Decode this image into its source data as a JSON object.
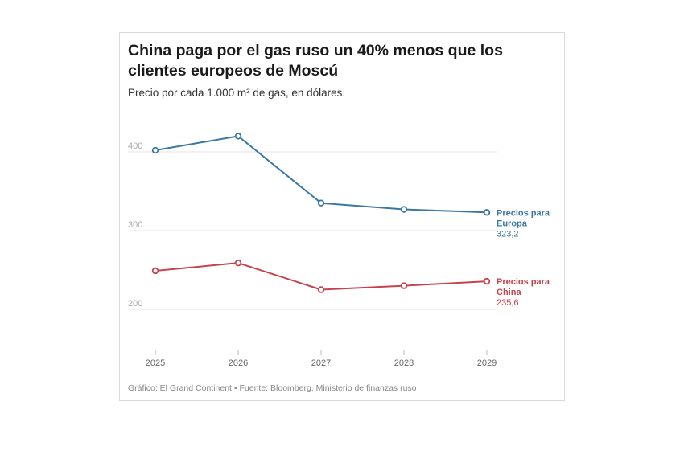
{
  "chart_data": {
    "type": "line",
    "title": "China paga por el gas ruso un 40% menos que los clientes europeos de Moscú",
    "subtitle": "Precio por cada 1.000 m³ de gas, en dólares.",
    "x": [
      "2025",
      "2026",
      "2027",
      "2028",
      "2029"
    ],
    "yticks": [
      200,
      300,
      400
    ],
    "ylim": [
      165,
      435
    ],
    "grid": true,
    "series": [
      {
        "name_lines": [
          "Precios para",
          "Europa"
        ],
        "values": [
          402,
          420,
          335,
          327,
          323.2
        ],
        "end_label": "323,2",
        "color": "#3a77a4"
      },
      {
        "name_lines": [
          "Precios para",
          "China"
        ],
        "values": [
          249,
          259,
          225,
          230,
          235.6
        ],
        "end_label": "235,6",
        "color": "#c6424c"
      }
    ],
    "source": "Gráfico: El Grand Continent • Fuente: Bloomberg, Ministerio de finanzas ruso"
  }
}
